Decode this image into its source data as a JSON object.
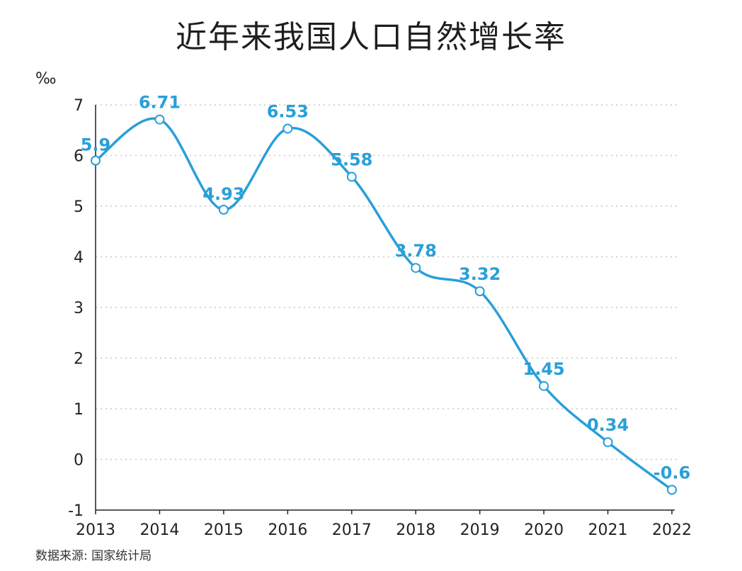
{
  "title": "近年来我国人口自然增长率",
  "source": "数据来源: 国家统计局",
  "chart_data": {
    "type": "line",
    "title": "近年来我国人口自然增长率",
    "ylabel": "‰",
    "xlabel": "",
    "x": [
      "2013",
      "2014",
      "2015",
      "2016",
      "2017",
      "2018",
      "2019",
      "2020",
      "2021",
      "2022"
    ],
    "values": [
      5.9,
      6.71,
      4.93,
      6.53,
      5.58,
      3.78,
      3.32,
      1.45,
      0.34,
      -0.6
    ],
    "data_labels": [
      "5.9",
      "6.71",
      "4.93",
      "6.53",
      "5.58",
      "3.78",
      "3.32",
      "1.45",
      "0.34",
      "-0.6"
    ],
    "yticks": [
      "7",
      "6",
      "5",
      "4",
      "3",
      "2",
      "1",
      "0",
      "-1"
    ],
    "ylim": [
      -1,
      7
    ],
    "grid": "horizontal dotted",
    "smooth": true,
    "legend": "none",
    "colors": {
      "line": "#2a9fd8",
      "label": "#2a9fd8",
      "marker_fill": "#ffffff",
      "axis": "#222222",
      "grid": "#c8c8c8",
      "text": "#222222"
    }
  }
}
